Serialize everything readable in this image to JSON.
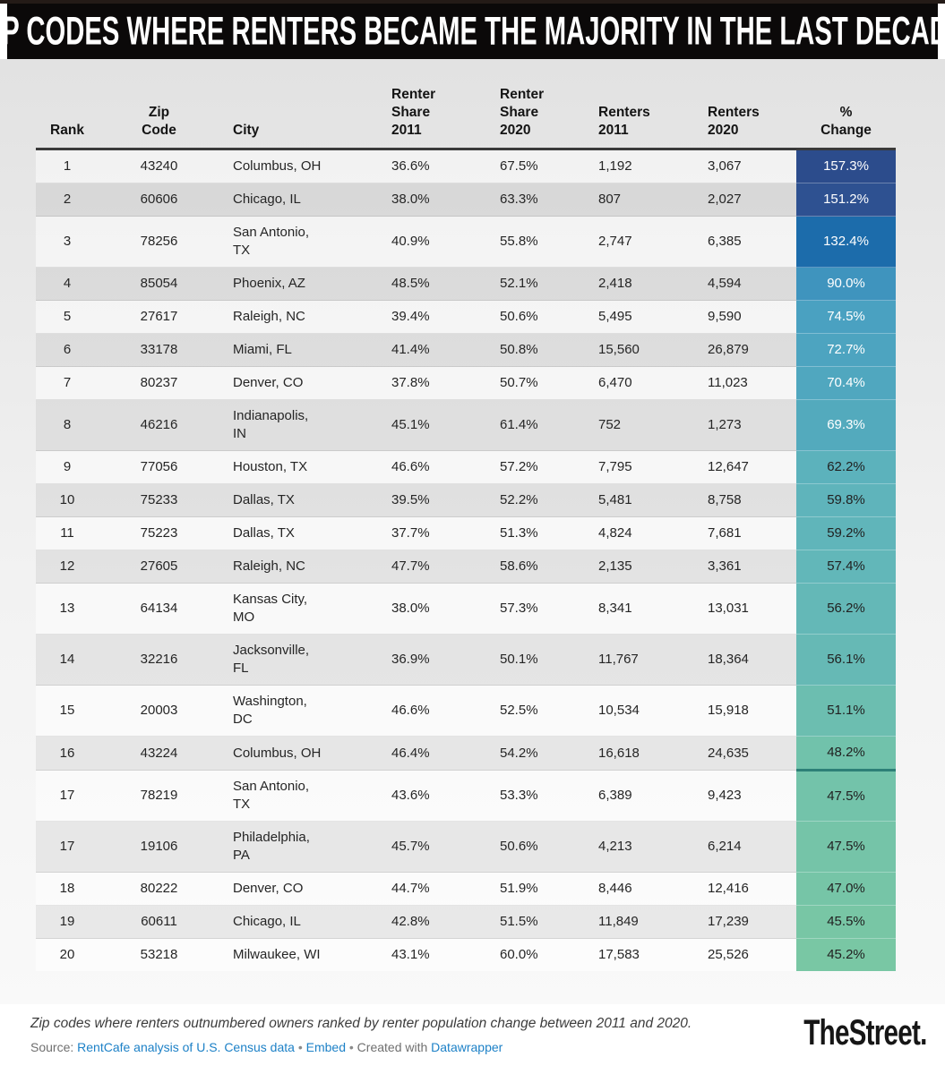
{
  "title": "ZIP CODES WHERE RENTERS BECAME THE MAJORITY IN THE LAST DECADE",
  "colors": {
    "title_bar_bg": "#0b0909",
    "header_rule": "#3a3a3a",
    "link_blue": "#1d81c7",
    "change_divider_teal": "#2d8077",
    "scale_top_navy": "#2c4c8c",
    "scale_bottom_green": "#79c7a4"
  },
  "chart_data": {
    "type": "table",
    "title": "ZIP CODES WHERE RENTERS BECAME THE MAJORITY IN THE LAST DECADE",
    "columns": [
      {
        "key": "rank",
        "label": "Rank"
      },
      {
        "key": "zip",
        "label": "Zip\nCode"
      },
      {
        "key": "city",
        "label": "City"
      },
      {
        "key": "rs2011",
        "label": "Renter\nShare\n2011"
      },
      {
        "key": "rs2020",
        "label": "Renter\nShare\n2020"
      },
      {
        "key": "r2011",
        "label": "Renters\n2011"
      },
      {
        "key": "r2020",
        "label": "Renters\n2020"
      },
      {
        "key": "change",
        "label": "%\nChange"
      }
    ],
    "rows": [
      {
        "rank": "1",
        "zip": "43240",
        "city": "Columbus, OH",
        "rs2011": "36.6%",
        "rs2020": "67.5%",
        "r2011": "1,192",
        "r2020": "3,067",
        "change": "157.3%",
        "change_bg": "#2c4c8c",
        "change_color": "#ffffff"
      },
      {
        "rank": "2",
        "zip": "60606",
        "city": "Chicago, IL",
        "rs2011": "38.0%",
        "rs2020": "63.3%",
        "r2011": "807",
        "r2020": "2,027",
        "change": "151.2%",
        "change_bg": "#2e5191",
        "change_color": "#ffffff"
      },
      {
        "rank": "3",
        "zip": "78256",
        "city": "San Antonio,\nTX",
        "rs2011": "40.9%",
        "rs2020": "55.8%",
        "r2011": "2,747",
        "r2020": "6,385",
        "change": "132.4%",
        "change_bg": "#1c6cab",
        "change_color": "#ffffff"
      },
      {
        "rank": "4",
        "zip": "85054",
        "city": "Phoenix, AZ",
        "rs2011": "48.5%",
        "rs2020": "52.1%",
        "r2011": "2,418",
        "r2020": "4,594",
        "change": "90.0%",
        "change_bg": "#3f94be",
        "change_color": "#ffffff"
      },
      {
        "rank": "5",
        "zip": "27617",
        "city": "Raleigh, NC",
        "rs2011": "39.4%",
        "rs2020": "50.6%",
        "r2011": "5,495",
        "r2020": "9,590",
        "change": "74.5%",
        "change_bg": "#4aa1c1",
        "change_color": "#ffffff"
      },
      {
        "rank": "6",
        "zip": "33178",
        "city": "Miami, FL",
        "rs2011": "41.4%",
        "rs2020": "50.8%",
        "r2011": "15,560",
        "r2020": "26,879",
        "change": "72.7%",
        "change_bg": "#4da4c0",
        "change_color": "#ffffff"
      },
      {
        "rank": "7",
        "zip": "80237",
        "city": "Denver, CO",
        "rs2011": "37.8%",
        "rs2020": "50.7%",
        "r2011": "6,470",
        "r2020": "11,023",
        "change": "70.4%",
        "change_bg": "#50a7bf",
        "change_color": "#ffffff"
      },
      {
        "rank": "8",
        "zip": "46216",
        "city": "Indianapolis,\nIN",
        "rs2011": "45.1%",
        "rs2020": "61.4%",
        "r2011": "752",
        "r2020": "1,273",
        "change": "69.3%",
        "change_bg": "#53aabd",
        "change_color": "#ffffff"
      },
      {
        "rank": "9",
        "zip": "77056",
        "city": "Houston, TX",
        "rs2011": "46.6%",
        "rs2020": "57.2%",
        "r2011": "7,795",
        "r2020": "12,647",
        "change": "62.2%",
        "change_bg": "#5cb2bc",
        "change_color": "#212121"
      },
      {
        "rank": "10",
        "zip": "75233",
        "city": "Dallas, TX",
        "rs2011": "39.5%",
        "rs2020": "52.2%",
        "r2011": "5,481",
        "r2020": "8,758",
        "change": "59.8%",
        "change_bg": "#5fb4bb",
        "change_color": "#212121"
      },
      {
        "rank": "11",
        "zip": "75223",
        "city": "Dallas, TX",
        "rs2011": "37.7%",
        "rs2020": "51.3%",
        "r2011": "4,824",
        "r2020": "7,681",
        "change": "59.2%",
        "change_bg": "#60b5ba",
        "change_color": "#212121"
      },
      {
        "rank": "12",
        "zip": "27605",
        "city": "Raleigh, NC",
        "rs2011": "47.7%",
        "rs2020": "58.6%",
        "r2011": "2,135",
        "r2020": "3,361",
        "change": "57.4%",
        "change_bg": "#62b7b9",
        "change_color": "#212121"
      },
      {
        "rank": "13",
        "zip": "64134",
        "city": "Kansas City,\nMO",
        "rs2011": "38.0%",
        "rs2020": "57.3%",
        "r2011": "8,341",
        "r2020": "13,031",
        "change": "56.2%",
        "change_bg": "#64b8b7",
        "change_color": "#212121"
      },
      {
        "rank": "14",
        "zip": "32216",
        "city": "Jacksonville,\nFL",
        "rs2011": "36.9%",
        "rs2020": "50.1%",
        "r2011": "11,767",
        "r2020": "18,364",
        "change": "56.1%",
        "change_bg": "#66b9b5",
        "change_color": "#212121"
      },
      {
        "rank": "15",
        "zip": "20003",
        "city": "Washington,\nDC",
        "rs2011": "46.6%",
        "rs2020": "52.5%",
        "r2011": "10,534",
        "r2020": "15,918",
        "change": "51.1%",
        "change_bg": "#6cbeb0",
        "change_color": "#212121"
      },
      {
        "rank": "16",
        "zip": "43224",
        "city": "Columbus, OH",
        "rs2011": "46.4%",
        "rs2020": "54.2%",
        "r2011": "16,618",
        "r2020": "24,635",
        "change": "48.2%",
        "change_bg": "#71c2ab",
        "change_color": "#212121",
        "change_divider": true
      },
      {
        "rank": "17",
        "zip": "78219",
        "city": "San Antonio,\nTX",
        "rs2011": "43.6%",
        "rs2020": "53.3%",
        "r2011": "6,389",
        "r2020": "9,423",
        "change": "47.5%",
        "change_bg": "#73c3aa",
        "change_color": "#212121"
      },
      {
        "rank": "17",
        "zip": "19106",
        "city": "Philadelphia,\nPA",
        "rs2011": "45.7%",
        "rs2020": "50.6%",
        "r2011": "4,213",
        "r2020": "6,214",
        "change": "47.5%",
        "change_bg": "#75c4a8",
        "change_color": "#212121"
      },
      {
        "rank": "18",
        "zip": "80222",
        "city": "Denver, CO",
        "rs2011": "44.7%",
        "rs2020": "51.9%",
        "r2011": "8,446",
        "r2020": "12,416",
        "change": "47.0%",
        "change_bg": "#76c5a7",
        "change_color": "#212121"
      },
      {
        "rank": "19",
        "zip": "60611",
        "city": "Chicago, IL",
        "rs2011": "42.8%",
        "rs2020": "51.5%",
        "r2011": "11,849",
        "r2020": "17,239",
        "change": "45.5%",
        "change_bg": "#78c6a5",
        "change_color": "#212121"
      },
      {
        "rank": "20",
        "zip": "53218",
        "city": "Milwaukee, WI",
        "rs2011": "43.1%",
        "rs2020": "60.0%",
        "r2011": "17,583",
        "r2020": "25,526",
        "change": "45.2%",
        "change_bg": "#79c7a4",
        "change_color": "#212121"
      }
    ]
  },
  "footer": {
    "description": "Zip codes where renters outnumbered owners ranked by renter population change between 2011 and 2020.",
    "source_label": "Source:",
    "source_link": "RentCafe analysis of U.S. Census data",
    "separator": "•",
    "embed_link": "Embed",
    "created_with_label": "Created with",
    "datawrapper_link": "Datawrapper"
  },
  "brand": {
    "name": "TheStreet."
  }
}
